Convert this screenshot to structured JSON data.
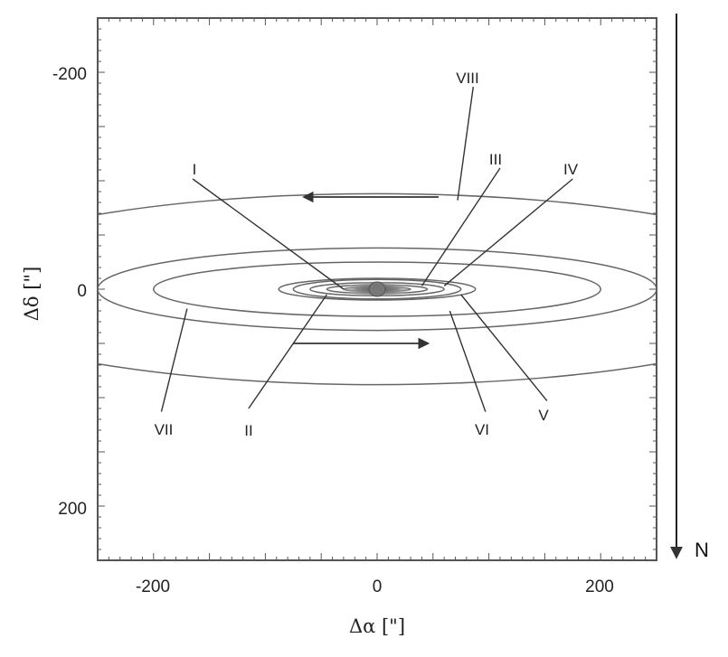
{
  "chart_data": {
    "type": "scatter",
    "xlabel": "Δα [\"]",
    "ylabel": "Δδ [\"]",
    "xlim": [
      -250,
      250
    ],
    "ylim": [
      -250,
      250
    ],
    "y_inverted": true,
    "x_ticks": [
      -200,
      0,
      200
    ],
    "y_ticks": [
      -200,
      0,
      200
    ],
    "x_tick_labels": [
      "-200",
      "0",
      "200"
    ],
    "y_tick_labels": [
      "-200",
      "0",
      "200"
    ],
    "grid": false,
    "north_label": "N",
    "rings": [
      {
        "name": "I",
        "semi_major": 30,
        "semi_minor": 2
      },
      {
        "name": "II",
        "semi_major": 45,
        "semi_minor": 4
      },
      {
        "name": "III",
        "semi_major": 60,
        "semi_minor": 6
      },
      {
        "name": "IV",
        "semi_major": 75,
        "semi_minor": 9
      },
      {
        "name": "V",
        "semi_major": 88,
        "semi_minor": 10
      },
      {
        "name": "VI",
        "semi_major": 200,
        "semi_minor": 25
      },
      {
        "name": "VII",
        "semi_major": 250,
        "semi_minor": 38
      },
      {
        "name": "VIII",
        "semi_major": 400,
        "semi_minor": 88
      }
    ],
    "annotations": [
      {
        "text": "I",
        "label_xy": [
          -165,
          -110
        ],
        "target_xy": [
          -30,
          0
        ]
      },
      {
        "text": "II",
        "label_xy": [
          -115,
          125
        ],
        "target_xy": [
          -45,
          5
        ]
      },
      {
        "text": "III",
        "label_xy": [
          110,
          -120
        ],
        "target_xy": [
          40,
          -3
        ]
      },
      {
        "text": "IV",
        "label_xy": [
          175,
          -110
        ],
        "target_xy": [
          60,
          -3
        ]
      },
      {
        "text": "V",
        "label_xy": [
          152,
          118
        ],
        "target_xy": [
          75,
          5
        ]
      },
      {
        "text": "VI",
        "label_xy": [
          97,
          128
        ],
        "target_xy": [
          65,
          20
        ]
      },
      {
        "text": "VII",
        "label_xy": [
          -193,
          128
        ],
        "target_xy": [
          -170,
          18
        ]
      },
      {
        "text": "VIII",
        "label_xy": [
          86,
          -195
        ],
        "target_xy": [
          72,
          -82
        ]
      }
    ],
    "rotation_arrows": [
      {
        "from": [
          55,
          -85
        ],
        "to": [
          -65,
          -85
        ]
      },
      {
        "from": [
          -75,
          50
        ],
        "to": [
          45,
          50
        ]
      }
    ]
  }
}
